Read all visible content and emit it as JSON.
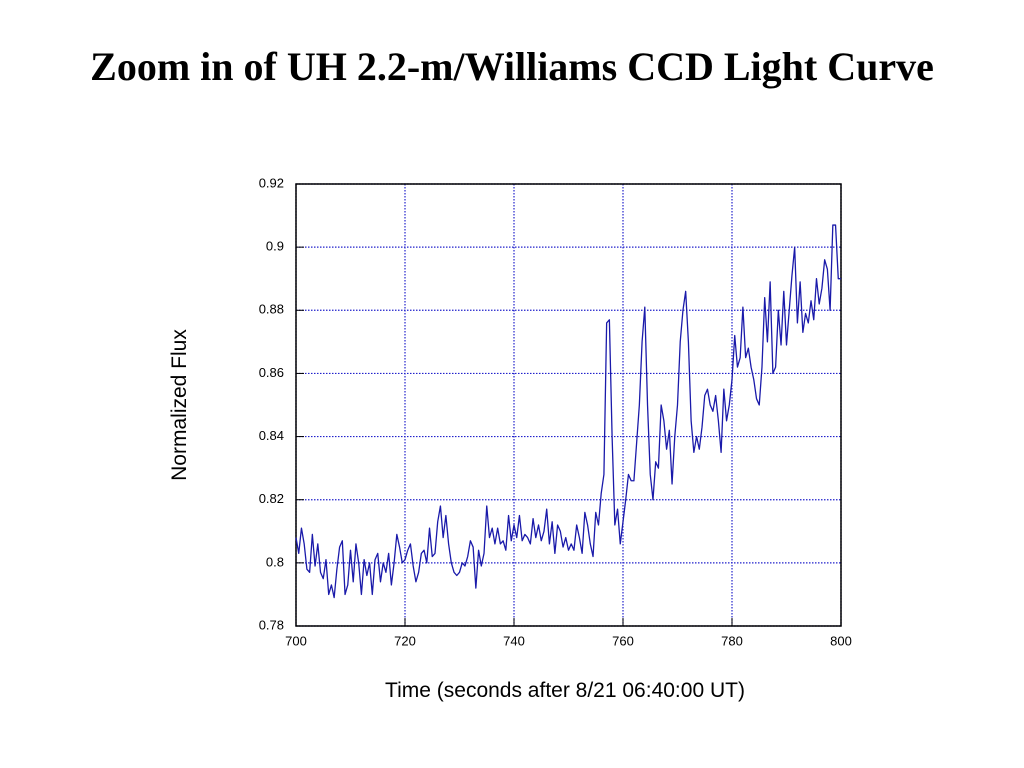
{
  "chart_data": {
    "type": "line",
    "title": "Zoom in of UH 2.2-m/Williams CCD Light Curve",
    "x_label": "Time (seconds after 8/21 06:40:00 UT)",
    "y_label": "Normalized Flux",
    "xlim": [
      700,
      800
    ],
    "xticks": [
      700,
      720,
      740,
      760,
      780,
      800
    ],
    "ylim": [
      0.78,
      0.92
    ],
    "yticks": [
      0.78,
      0.8,
      0.82,
      0.84,
      0.86,
      0.88,
      0.9,
      0.92
    ],
    "grid": true,
    "x": [
      700,
      700.5,
      701,
      701.5,
      702,
      702.5,
      703,
      703.5,
      704,
      704.5,
      705,
      705.5,
      706,
      706.5,
      707,
      707.5,
      708,
      708.5,
      709,
      709.5,
      710,
      710.5,
      711,
      711.5,
      712,
      712.5,
      713,
      713.5,
      714,
      714.5,
      715,
      715.5,
      716,
      716.5,
      717,
      717.5,
      718,
      718.5,
      719,
      719.5,
      720,
      720.5,
      721,
      721.5,
      722,
      722.5,
      723,
      723.5,
      724,
      724.5,
      725,
      725.5,
      726,
      726.5,
      727,
      727.5,
      728,
      728.5,
      729,
      729.5,
      730,
      730.5,
      731,
      731.5,
      732,
      732.5,
      733,
      733.5,
      734,
      734.5,
      735,
      735.5,
      736,
      736.5,
      737,
      737.5,
      738,
      738.5,
      739,
      739.5,
      740,
      740.5,
      741,
      741.5,
      742,
      742.5,
      743,
      743.5,
      744,
      744.5,
      745,
      745.5,
      746,
      746.5,
      747,
      747.5,
      748,
      748.5,
      749,
      749.5,
      750,
      750.5,
      751,
      751.5,
      752,
      752.5,
      753,
      753.5,
      754,
      754.5,
      755,
      755.5,
      756,
      756.5,
      757,
      757.5,
      758,
      758.5,
      759,
      759.5,
      760,
      760.5,
      761,
      761.5,
      762,
      762.5,
      763,
      763.5,
      764,
      764.5,
      765,
      765.5,
      766,
      766.5,
      767,
      767.5,
      768,
      768.5,
      769,
      769.5,
      770,
      770.5,
      771,
      771.5,
      772,
      772.5,
      773,
      773.5,
      774,
      774.5,
      775,
      775.5,
      776,
      776.5,
      777,
      777.5,
      778,
      778.5,
      779,
      779.5,
      780,
      780.5,
      781,
      781.5,
      782,
      782.5,
      783,
      783.5,
      784,
      784.5,
      785,
      785.5,
      786,
      786.5,
      787,
      787.5,
      788,
      788.5,
      789,
      789.5,
      790,
      790.5,
      791,
      791.5,
      792,
      792.5,
      793,
      793.5,
      794,
      794.5,
      795,
      795.5,
      796,
      796.5,
      797,
      797.5,
      798,
      798.5,
      799,
      799.5,
      800
    ],
    "series": [
      {
        "color": "#1a1aaa",
        "values": [
          0.808,
          0.803,
          0.811,
          0.806,
          0.798,
          0.797,
          0.809,
          0.799,
          0.806,
          0.797,
          0.795,
          0.801,
          0.79,
          0.793,
          0.789,
          0.798,
          0.805,
          0.807,
          0.79,
          0.793,
          0.804,
          0.794,
          0.806,
          0.8,
          0.79,
          0.801,
          0.796,
          0.8,
          0.79,
          0.801,
          0.803,
          0.794,
          0.8,
          0.797,
          0.803,
          0.793,
          0.8,
          0.809,
          0.805,
          0.8,
          0.801,
          0.804,
          0.806,
          0.799,
          0.794,
          0.797,
          0.803,
          0.804,
          0.8,
          0.811,
          0.802,
          0.803,
          0.813,
          0.818,
          0.808,
          0.815,
          0.806,
          0.8,
          0.797,
          0.796,
          0.797,
          0.8,
          0.799,
          0.802,
          0.807,
          0.805,
          0.792,
          0.804,
          0.799,
          0.803,
          0.818,
          0.808,
          0.811,
          0.806,
          0.811,
          0.806,
          0.807,
          0.804,
          0.815,
          0.807,
          0.812,
          0.808,
          0.815,
          0.807,
          0.809,
          0.808,
          0.806,
          0.814,
          0.808,
          0.812,
          0.807,
          0.81,
          0.817,
          0.806,
          0.813,
          0.803,
          0.812,
          0.81,
          0.805,
          0.808,
          0.804,
          0.806,
          0.804,
          0.812,
          0.808,
          0.803,
          0.816,
          0.812,
          0.806,
          0.802,
          0.816,
          0.812,
          0.822,
          0.828,
          0.876,
          0.877,
          0.84,
          0.812,
          0.817,
          0.806,
          0.813,
          0.82,
          0.828,
          0.826,
          0.826,
          0.838,
          0.85,
          0.87,
          0.881,
          0.85,
          0.828,
          0.82,
          0.832,
          0.83,
          0.85,
          0.845,
          0.836,
          0.842,
          0.825,
          0.84,
          0.85,
          0.87,
          0.88,
          0.886,
          0.87,
          0.845,
          0.835,
          0.84,
          0.836,
          0.843,
          0.853,
          0.855,
          0.85,
          0.848,
          0.853,
          0.845,
          0.835,
          0.855,
          0.845,
          0.85,
          0.858,
          0.872,
          0.862,
          0.865,
          0.881,
          0.865,
          0.868,
          0.862,
          0.858,
          0.852,
          0.85,
          0.862,
          0.884,
          0.87,
          0.889,
          0.86,
          0.862,
          0.88,
          0.869,
          0.886,
          0.869,
          0.88,
          0.891,
          0.9,
          0.876,
          0.889,
          0.873,
          0.879,
          0.876,
          0.883,
          0.877,
          0.89,
          0.882,
          0.887,
          0.896,
          0.893,
          0.88,
          0.907,
          0.907,
          0.89,
          0.89
        ]
      }
    ]
  }
}
